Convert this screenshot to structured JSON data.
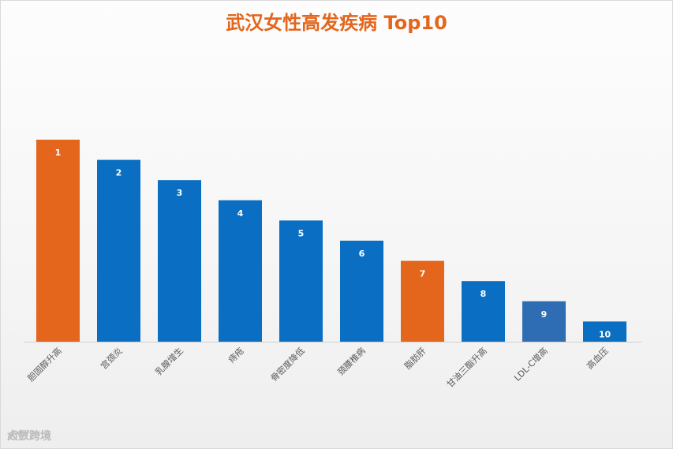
{
  "chart_data": {
    "type": "bar",
    "title": "武汉女性高发疾病 Top10",
    "categories": [
      "胆固醇升高",
      "宫颈炎",
      "乳腺增生",
      "痔疮",
      "骨密度降低",
      "颈腰椎病",
      "脂肪肝",
      "甘油三酯升高",
      "LDL-C增高",
      "高血压"
    ],
    "values": [
      10,
      9,
      8,
      7,
      6,
      5,
      4,
      3,
      2,
      1
    ],
    "data_labels": [
      "1",
      "2",
      "3",
      "4",
      "5",
      "6",
      "7",
      "8",
      "9",
      "10"
    ],
    "colors": [
      "#e4651c",
      "#0a6fc2",
      "#0a6fc2",
      "#0a6fc2",
      "#0a6fc2",
      "#0a6fc2",
      "#e4651c",
      "#0a6fc2",
      "#2e6db3",
      "#0a6fc2"
    ],
    "xlabel": "",
    "ylabel": "",
    "ylim": [
      0,
      10
    ],
    "grid": false,
    "legend": "none"
  },
  "watermark": {
    "text": "大数跨境"
  }
}
